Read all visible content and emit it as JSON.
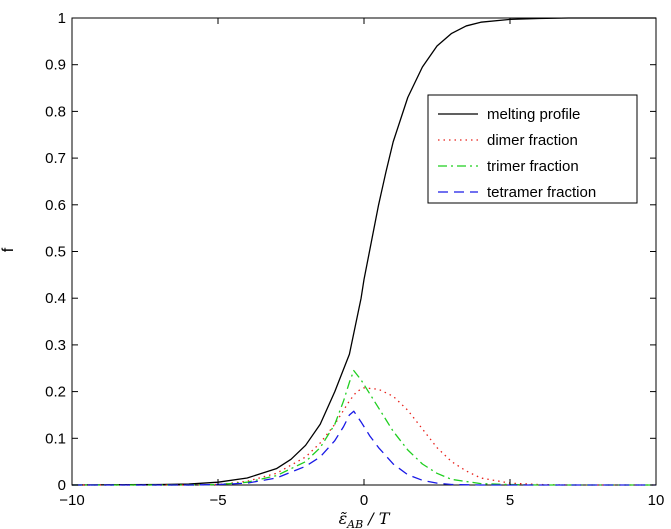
{
  "chart_data": {
    "type": "line",
    "title": "",
    "xlabel": "ε̃_AB / T",
    "ylabel": "f",
    "xlim": [
      -10,
      10
    ],
    "ylim": [
      0,
      1
    ],
    "x_ticks": [
      "−10",
      "−5",
      "0",
      "5",
      "10"
    ],
    "y_ticks": [
      "0",
      "0.1",
      "0.2",
      "0.3",
      "0.4",
      "0.5",
      "0.6",
      "0.7",
      "0.8",
      "0.9",
      "1"
    ],
    "grid": false,
    "legend_position": "top-right",
    "series": [
      {
        "name": "melting profile",
        "color": "#000000",
        "dash": "solid",
        "points": [
          [
            -10,
            0
          ],
          [
            -7,
            0.001
          ],
          [
            -6,
            0.002
          ],
          [
            -5,
            0.006
          ],
          [
            -4,
            0.015
          ],
          [
            -3,
            0.035
          ],
          [
            -2.5,
            0.055
          ],
          [
            -2,
            0.085
          ],
          [
            -1.5,
            0.13
          ],
          [
            -1,
            0.2
          ],
          [
            -0.5,
            0.28
          ],
          [
            -0.3,
            0.34
          ],
          [
            -0.2,
            0.37
          ],
          [
            -0.1,
            0.4
          ],
          [
            0,
            0.44
          ],
          [
            0.25,
            0.52
          ],
          [
            0.5,
            0.6
          ],
          [
            0.75,
            0.67
          ],
          [
            1,
            0.735
          ],
          [
            1.5,
            0.83
          ],
          [
            2,
            0.895
          ],
          [
            2.5,
            0.94
          ],
          [
            3,
            0.967
          ],
          [
            3.5,
            0.983
          ],
          [
            4,
            0.991
          ],
          [
            5,
            0.997
          ],
          [
            6,
            0.999
          ],
          [
            7,
            1.0
          ],
          [
            10,
            1.0
          ]
        ]
      },
      {
        "name": "dimer fraction",
        "color": "#e8201a",
        "dash": "dotted",
        "points": [
          [
            -10,
            0
          ],
          [
            -6,
            0.0
          ],
          [
            -5,
            0.001
          ],
          [
            -4,
            0.008
          ],
          [
            -3,
            0.025
          ],
          [
            -2,
            0.06
          ],
          [
            -1.5,
            0.09
          ],
          [
            -1,
            0.13
          ],
          [
            -0.5,
            0.18
          ],
          [
            -0.25,
            0.2
          ],
          [
            0,
            0.208
          ],
          [
            0.5,
            0.205
          ],
          [
            1,
            0.19
          ],
          [
            1.5,
            0.16
          ],
          [
            2,
            0.12
          ],
          [
            2.5,
            0.08
          ],
          [
            3,
            0.05
          ],
          [
            3.5,
            0.03
          ],
          [
            4,
            0.015
          ],
          [
            5,
            0.004
          ],
          [
            6,
            0.001
          ],
          [
            7,
            0
          ],
          [
            10,
            0
          ]
        ]
      },
      {
        "name": "trimer fraction",
        "color": "#1fcf1f",
        "dash": "dashdot",
        "points": [
          [
            -10,
            0
          ],
          [
            -6,
            0
          ],
          [
            -5,
            0.001
          ],
          [
            -4,
            0.006
          ],
          [
            -3,
            0.02
          ],
          [
            -2,
            0.05
          ],
          [
            -1.5,
            0.08
          ],
          [
            -1,
            0.13
          ],
          [
            -0.7,
            0.18
          ],
          [
            -0.5,
            0.22
          ],
          [
            -0.35,
            0.245
          ],
          [
            -0.1,
            0.225
          ],
          [
            0.2,
            0.195
          ],
          [
            0.5,
            0.165
          ],
          [
            1,
            0.115
          ],
          [
            1.5,
            0.075
          ],
          [
            2,
            0.045
          ],
          [
            2.5,
            0.025
          ],
          [
            3,
            0.012
          ],
          [
            4,
            0.003
          ],
          [
            5,
            0.001
          ],
          [
            6,
            0
          ],
          [
            10,
            0
          ]
        ]
      },
      {
        "name": "tetramer fraction",
        "color": "#1a1ae6",
        "dash": "dashed",
        "points": [
          [
            -10,
            0
          ],
          [
            -6,
            0
          ],
          [
            -5,
            0.001
          ],
          [
            -4,
            0.004
          ],
          [
            -3,
            0.015
          ],
          [
            -2,
            0.04
          ],
          [
            -1.5,
            0.06
          ],
          [
            -1,
            0.095
          ],
          [
            -0.7,
            0.125
          ],
          [
            -0.5,
            0.15
          ],
          [
            -0.35,
            0.158
          ],
          [
            -0.1,
            0.135
          ],
          [
            0.2,
            0.105
          ],
          [
            0.5,
            0.08
          ],
          [
            1,
            0.045
          ],
          [
            1.5,
            0.022
          ],
          [
            2,
            0.01
          ],
          [
            2.5,
            0.004
          ],
          [
            3,
            0.001
          ],
          [
            4,
            0
          ],
          [
            10,
            0
          ]
        ]
      }
    ]
  }
}
